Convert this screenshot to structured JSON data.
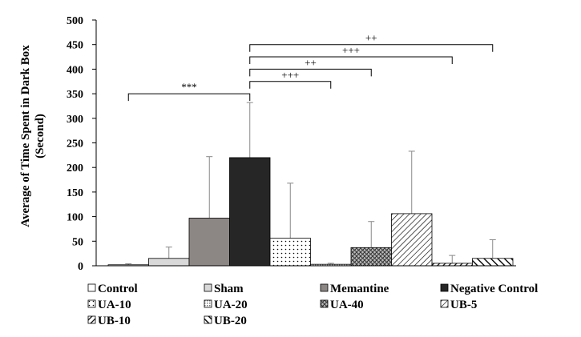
{
  "chart_data": {
    "type": "bar",
    "title": "",
    "ylabel_line1": "Average of Time Spent in Dark Box",
    "ylabel_line2": "(Second)",
    "xlabel": "",
    "ylim": [
      0,
      500
    ],
    "yticks": [
      "0",
      "50",
      "100",
      "150",
      "200",
      "250",
      "300",
      "350",
      "400",
      "450",
      "500"
    ],
    "grid": false,
    "legend_position": "bottom",
    "categories": [
      "Control",
      "Sham",
      "Memantine",
      "Negative Control",
      "UA-10",
      "UA-20",
      "UA-40",
      "UB-5",
      "UB-10",
      "UB-20"
    ],
    "values": [
      2,
      15,
      97,
      220,
      56,
      3,
      37,
      106,
      5,
      15
    ],
    "errors": [
      2,
      23,
      125,
      112,
      112,
      2,
      53,
      127,
      16,
      38
    ],
    "patterns": [
      "white",
      "lightgray",
      "gray",
      "black",
      "dots",
      "fine-grid",
      "crosshatch",
      "diag-down",
      "diag-down-bold",
      "diag-up-bold"
    ],
    "significance": [
      {
        "from": 0,
        "to": 3,
        "label": "***"
      },
      {
        "from": 3,
        "to": 5,
        "label": "+++"
      },
      {
        "from": 3,
        "to": 6,
        "label": "++"
      },
      {
        "from": 3,
        "to": 8,
        "label": "+++"
      },
      {
        "from": 3,
        "to": 9,
        "label": "++"
      }
    ],
    "sig_levels": [
      350,
      375,
      400,
      425,
      450
    ]
  }
}
